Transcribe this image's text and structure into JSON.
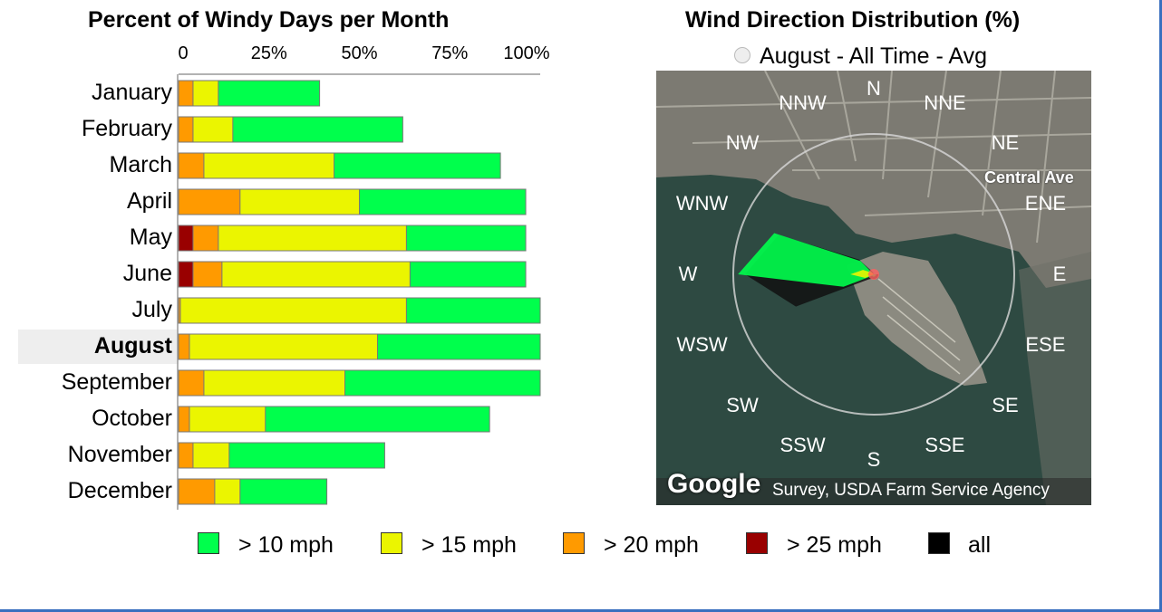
{
  "left_title": "Percent of Windy Days per Month",
  "right_title": "Wind Direction Distribution (%)",
  "radio_label": "August - All Time - Avg",
  "map": {
    "directions": [
      "N",
      "NNE",
      "NE",
      "ENE",
      "E",
      "ESE",
      "SE",
      "SSE",
      "S",
      "SSW",
      "SW",
      "WSW",
      "W",
      "WNW",
      "NW",
      "NNW"
    ],
    "street_label": "Central Ave",
    "brand": "Google",
    "attribution": "Survey, USDA Farm Service Agency"
  },
  "colors": {
    "gt10": "#00ff4c",
    "gt15": "#ebf500",
    "gt20": "#ff9a00",
    "gt25": "#990000",
    "all": "#000000",
    "highlight_row": "#eeeeee",
    "map_bg": "#2e4a42",
    "page_rule": "#3a6fbf"
  },
  "legend": [
    {
      "label": "> 10 mph",
      "color": "#00ff4c"
    },
    {
      "label": "> 15 mph",
      "color": "#ebf500"
    },
    {
      "label": "> 20 mph",
      "color": "#ff9a00"
    },
    {
      "label": "> 25 mph",
      "color": "#990000"
    },
    {
      "label": "all",
      "color": "#000000"
    }
  ],
  "chart_data": [
    {
      "type": "bar",
      "orientation": "horizontal",
      "stacked": "overlay",
      "title": "Percent of Windy Days per Month",
      "categories": [
        "January",
        "February",
        "March",
        "April",
        "May",
        "June",
        "July",
        "August",
        "September",
        "October",
        "November",
        "December"
      ],
      "highlighted_category": "August",
      "xticks": [
        "0",
        "25%",
        "50%",
        "75%",
        "100%"
      ],
      "xlim": [
        0,
        100
      ],
      "series": [
        {
          "name": "> 10 mph",
          "values": [
            39,
            62,
            89,
            96,
            96,
            96,
            100,
            100,
            100,
            86,
            57,
            41
          ]
        },
        {
          "name": "> 15 mph",
          "values": [
            11,
            15,
            43,
            50,
            63,
            64,
            63,
            55,
            46,
            24,
            14,
            17
          ]
        },
        {
          "name": "> 20 mph",
          "values": [
            4,
            4,
            7,
            17,
            11,
            12,
            0.5,
            3,
            7,
            3,
            4,
            10
          ]
        },
        {
          "name": "> 25 mph",
          "values": [
            0,
            0,
            0,
            0,
            4,
            4,
            0,
            0,
            0,
            0,
            0,
            0
          ]
        }
      ]
    },
    {
      "type": "polar",
      "title": "Wind Direction Distribution (%)",
      "subtitle": "August - All Time - Avg",
      "categories": [
        "N",
        "NNE",
        "NE",
        "ENE",
        "E",
        "ESE",
        "SE",
        "SSE",
        "S",
        "SSW",
        "SW",
        "WSW",
        "W",
        "WNW",
        "NW",
        "NNW"
      ],
      "series": [
        {
          "name": "> 10 mph",
          "values": [
            0,
            0,
            0,
            0,
            1,
            1,
            1,
            1,
            1,
            1,
            1,
            14,
            58,
            46,
            8,
            0
          ]
        },
        {
          "name": "> 15 mph",
          "values": [
            0,
            0,
            0,
            0,
            0,
            0,
            0,
            0,
            0,
            0,
            0,
            4,
            10,
            5,
            1,
            0
          ]
        },
        {
          "name": "> 20 mph",
          "values": [
            0,
            0,
            0,
            0,
            0,
            0,
            0,
            0,
            0,
            0,
            0,
            1,
            3,
            1,
            0,
            0
          ]
        },
        {
          "name": "all",
          "values": [
            0,
            0,
            0,
            0,
            2,
            2,
            2,
            2,
            2,
            2,
            3,
            36,
            55,
            44,
            9,
            1
          ]
        }
      ]
    }
  ]
}
